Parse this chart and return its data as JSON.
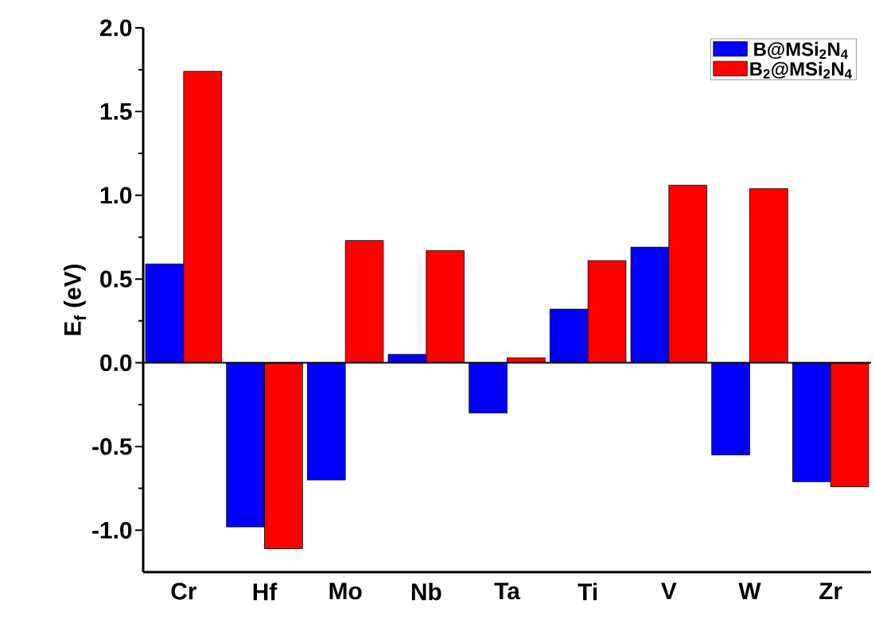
{
  "chart_data": {
    "type": "bar",
    "ylabel": "E$_{f}$ (eV)",
    "categories": [
      "Cr",
      "Hf",
      "Mo",
      "Nb",
      "Ta",
      "Ti",
      "V",
      "W",
      "Zr"
    ],
    "series": [
      {
        "name": "B@MSi$_{2}$N$_{4}$",
        "color": "#0000ff",
        "values": [
          0.59,
          -0.98,
          -0.7,
          0.05,
          -0.3,
          0.32,
          0.69,
          -0.55,
          -0.71
        ]
      },
      {
        "name": "B$_{2}$@MSi$_{2}$N$_{4}$",
        "color": "#ff0000",
        "values": [
          1.74,
          -1.11,
          0.73,
          0.67,
          0.03,
          0.61,
          1.06,
          1.04,
          -0.74
        ]
      }
    ],
    "ylim": [
      -1.25,
      2.0
    ],
    "yticks": [
      {
        "value": -1,
        "label": "-1.0"
      },
      {
        "value": -0.5,
        "label": "-0.5"
      },
      {
        "value": 0,
        "label": "0.0"
      },
      {
        "value": 0.5,
        "label": "0.5"
      },
      {
        "value": 1,
        "label": "1.0"
      },
      {
        "value": 1.5,
        "label": "1.5"
      },
      {
        "value": 2,
        "label": "2.0"
      }
    ],
    "ref_lines": [
      {
        "axis": "y",
        "value": 0
      }
    ],
    "legend": "top right"
  }
}
